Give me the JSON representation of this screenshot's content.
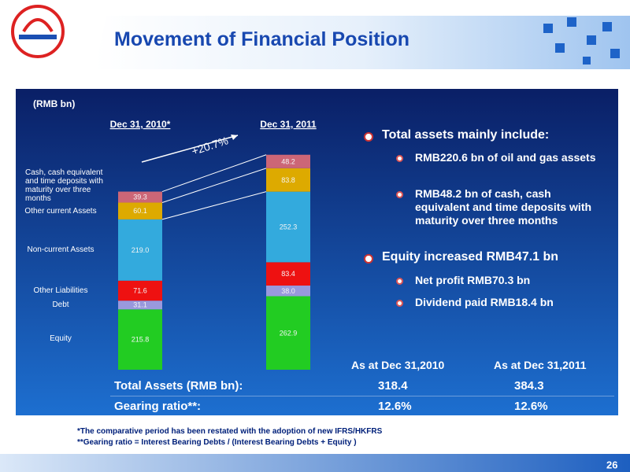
{
  "header": {
    "title": "Movement of Financial Position"
  },
  "chart_data": {
    "type": "stacked-bar",
    "unit_label": "(RMB bn)",
    "annotation": "+20.7%",
    "categories": [
      "Dec 31, 2010*",
      "Dec 31, 2011"
    ],
    "series": [
      {
        "name": "Equity",
        "color": "#22cc22",
        "values": [
          215.8,
          262.9
        ],
        "value_labels": [
          "215.8",
          "262.9"
        ]
      },
      {
        "name": "Debt",
        "color": "#9999dd",
        "values": [
          31.1,
          38.0
        ],
        "value_labels": [
          "31.1",
          "38.0"
        ]
      },
      {
        "name": "Other Liabilities",
        "color": "#ee1111",
        "values": [
          71.6,
          83.4
        ],
        "value_labels": [
          "71.6",
          "83.4"
        ]
      },
      {
        "name": "Non-current Assets",
        "color": "#33aadd",
        "values": [
          219.0,
          252.3
        ],
        "value_labels": [
          "219.0",
          "252.3"
        ]
      },
      {
        "name": "Other current Assets",
        "color": "#ddaa00",
        "values": [
          60.1,
          83.8
        ],
        "value_labels": [
          "60.1",
          "83.8"
        ]
      },
      {
        "name": "Cash, cash equivalent and time deposits with maturity over three months",
        "color": "#cc6677",
        "values": [
          39.3,
          48.2
        ],
        "value_labels": [
          "39.3",
          "48.2"
        ]
      }
    ],
    "ylim": [
      0,
      900
    ]
  },
  "bullets": [
    {
      "text": "Total assets mainly include:",
      "items": [
        "RMB220.6 bn of oil and gas assets",
        "RMB48.2 bn of cash, cash equivalent and time deposits with maturity over three months"
      ]
    },
    {
      "text": "Equity increased RMB47.1 bn",
      "items": [
        "Net profit RMB70.3 bn",
        "Dividend paid RMB18.4 bn"
      ]
    }
  ],
  "table": {
    "header": [
      "As at Dec 31,2010",
      "As at Dec 31,2011"
    ],
    "rows": [
      [
        "Total Assets (RMB bn):",
        "318.4",
        "384.3"
      ],
      [
        "Gearing ratio**:",
        "12.6%",
        "12.6%"
      ]
    ]
  },
  "footnotes": [
    "*The comparative period has been restated with the adoption of new IFRS/HKFRS",
    "**Gearing ratio = Interest Bearing Debts / (Interest Bearing  Debts + Equity )"
  ],
  "page_number": "26"
}
